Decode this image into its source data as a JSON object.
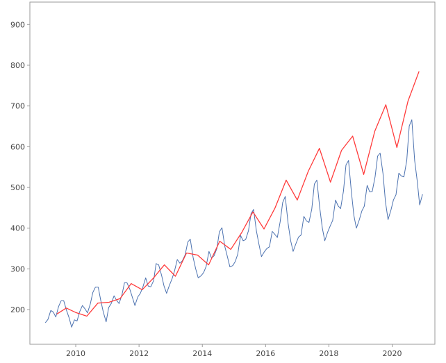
{
  "chart_data": {
    "type": "line",
    "title": "",
    "xlabel": "",
    "ylabel": "",
    "x_ticks": [
      "2010",
      "2012",
      "2014",
      "2016",
      "2018",
      "2020"
    ],
    "y_ticks": [
      "200",
      "300",
      "400",
      "500",
      "600",
      "700",
      "800",
      "900"
    ],
    "xlim": [
      2008.55,
      2021.35
    ],
    "ylim": [
      115,
      955
    ],
    "grid": false,
    "legend": "none",
    "series": [
      {
        "color": "#4c72b0",
        "x": [
          2009.04,
          2009.12,
          2009.21,
          2009.29,
          2009.37,
          2009.46,
          2009.54,
          2009.62,
          2009.71,
          2009.79,
          2009.87,
          2009.96,
          2010.04,
          2010.12,
          2010.21,
          2010.29,
          2010.37,
          2010.46,
          2010.54,
          2010.62,
          2010.71,
          2010.79,
          2010.87,
          2010.96,
          2011.04,
          2011.12,
          2011.21,
          2011.29,
          2011.37,
          2011.46,
          2011.54,
          2011.62,
          2011.71,
          2011.79,
          2011.87,
          2011.96,
          2012.04,
          2012.12,
          2012.21,
          2012.29,
          2012.37,
          2012.46,
          2012.54,
          2012.62,
          2012.71,
          2012.79,
          2012.87,
          2012.96,
          2013.04,
          2013.12,
          2013.21,
          2013.29,
          2013.37,
          2013.46,
          2013.54,
          2013.62,
          2013.71,
          2013.79,
          2013.87,
          2013.96,
          2014.04,
          2014.12,
          2014.21,
          2014.29,
          2014.37,
          2014.46,
          2014.54,
          2014.62,
          2014.71,
          2014.79,
          2014.87,
          2014.96,
          2015.04,
          2015.12,
          2015.21,
          2015.29,
          2015.37,
          2015.46,
          2015.54,
          2015.62,
          2015.71,
          2015.79,
          2015.87,
          2015.96,
          2016.04,
          2016.12,
          2016.21,
          2016.29,
          2016.37,
          2016.46,
          2016.54,
          2016.62,
          2016.71,
          2016.79,
          2016.87,
          2016.96,
          2017.04,
          2017.12,
          2017.21,
          2017.29,
          2017.37,
          2017.46,
          2017.54,
          2017.62,
          2017.71,
          2017.79,
          2017.87,
          2017.96,
          2018.04,
          2018.12,
          2018.21,
          2018.29,
          2018.37,
          2018.46,
          2018.54,
          2018.62,
          2018.71,
          2018.79,
          2018.87,
          2018.96,
          2019.04,
          2019.12,
          2019.21,
          2019.29,
          2019.37,
          2019.46,
          2019.54,
          2019.62,
          2019.71,
          2019.79,
          2019.87,
          2019.96,
          2020.04,
          2020.12,
          2020.21,
          2020.29,
          2020.37,
          2020.46,
          2020.54,
          2020.62,
          2020.71,
          2020.79,
          2020.87,
          2020.96
        ],
        "values": [
          168,
          176,
          198,
          194,
          182,
          208,
          222,
          222,
          198,
          180,
          157,
          175,
          172,
          194,
          210,
          202,
          192,
          214,
          242,
          255,
          255,
          223,
          194,
          170,
          205,
          215,
          234,
          223,
          215,
          236,
          266,
          266,
          250,
          230,
          210,
          231,
          240,
          255,
          278,
          258,
          256,
          271,
          313,
          310,
          285,
          258,
          240,
          260,
          275,
          294,
          323,
          314,
          320,
          335,
          366,
          373,
          328,
          300,
          278,
          283,
          291,
          306,
          343,
          327,
          332,
          350,
          391,
          401,
          355,
          331,
          305,
          308,
          318,
          336,
          382,
          369,
          372,
          394,
          436,
          446,
          393,
          360,
          330,
          342,
          350,
          354,
          392,
          385,
          377,
          416,
          463,
          478,
          412,
          370,
          343,
          362,
          378,
          383,
          429,
          418,
          414,
          447,
          508,
          518,
          451,
          401,
          369,
          390,
          405,
          419,
          469,
          455,
          448,
          491,
          555,
          566,
          489,
          431,
          400,
          420,
          442,
          454,
          505,
          489,
          490,
          526,
          577,
          584,
          534,
          464,
          421,
          444,
          469,
          482,
          535,
          528,
          526,
          566,
          651,
          666,
          566,
          517,
          457,
          483
        ]
      },
      {
        "color": "#ff3b3b",
        "x": [
          2009.4,
          2009.7,
          2010.0,
          2010.35,
          2010.7,
          2011.05,
          2011.4,
          2011.75,
          2012.1,
          2012.45,
          2012.8,
          2013.15,
          2013.5,
          2013.85,
          2014.2,
          2014.55,
          2014.9,
          2015.25,
          2015.6,
          2015.95,
          2016.3,
          2016.65,
          2017.0,
          2017.35,
          2017.7,
          2018.05,
          2018.4,
          2018.75,
          2019.1,
          2019.45,
          2019.8,
          2020.15,
          2020.5,
          2020.85
        ],
        "values": [
          189,
          204,
          193,
          184,
          216,
          218,
          227,
          264,
          249,
          277,
          310,
          282,
          339,
          334,
          310,
          368,
          348,
          390,
          440,
          398,
          450,
          518,
          469,
          540,
          596,
          513,
          591,
          626,
          532,
          638,
          703,
          598,
          712,
          785
        ]
      }
    ]
  }
}
